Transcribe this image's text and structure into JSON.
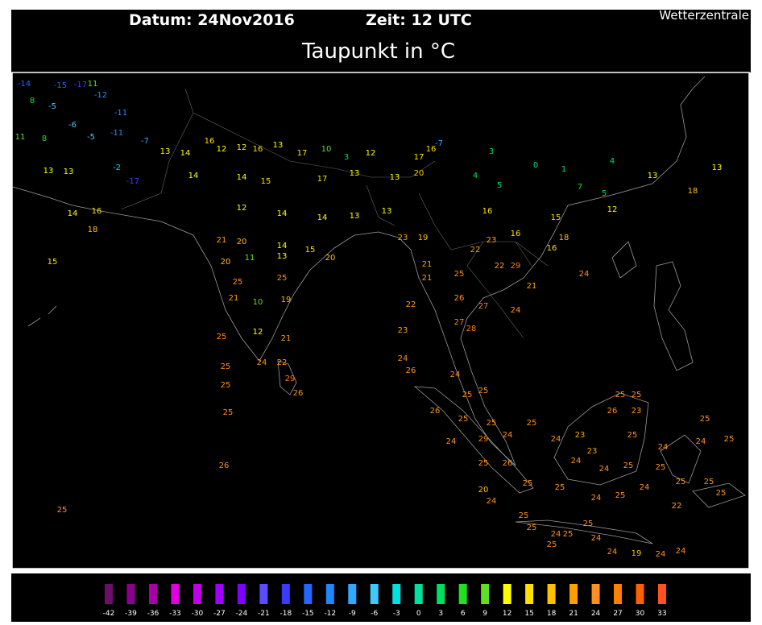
{
  "header": {
    "date": "Datum: 24Nov2016",
    "time": "Zeit: 12 UTC",
    "title": "Taupunkt in °C",
    "credit": "Wetterzentrale"
  },
  "legend": {
    "values": [
      -42,
      -39,
      -36,
      -33,
      -30,
      -27,
      -24,
      -21,
      -18,
      -15,
      -12,
      -9,
      -6,
      -3,
      0,
      3,
      6,
      9,
      12,
      15,
      18,
      21,
      24,
      27,
      30,
      33
    ],
    "colors": [
      "#6b0f6b",
      "#8b008b",
      "#a800a8",
      "#e000e0",
      "#c000e8",
      "#a000ff",
      "#8000ff",
      "#5a4cff",
      "#3a3aff",
      "#2466ff",
      "#2088ff",
      "#30a8ff",
      "#40c8ff",
      "#00e0e0",
      "#00e0a0",
      "#00e060",
      "#20e020",
      "#60e020",
      "#ffff00",
      "#ffe000",
      "#ffc000",
      "#ffa000",
      "#ff9020",
      "#ff8000",
      "#ff6000",
      "#ff5020"
    ]
  },
  "stations": [
    -14,
    -15,
    -17,
    11,
    -12,
    8,
    -5,
    -11,
    -6,
    -11,
    11,
    8,
    -5,
    -7,
    13,
    14,
    16,
    12,
    12,
    16,
    13,
    17,
    10,
    3,
    12,
    17,
    16,
    -7,
    3,
    0,
    1,
    4,
    13,
    13,
    -2,
    -17,
    14,
    14,
    15,
    17,
    13,
    13,
    20,
    4,
    5,
    7,
    5,
    13,
    13,
    18,
    14,
    16,
    12,
    14,
    14,
    13,
    13,
    16,
    15,
    12,
    18,
    21,
    20,
    14,
    15,
    23,
    19,
    23,
    16,
    18,
    15,
    20,
    11,
    13,
    20,
    21,
    22,
    22,
    16,
    24,
    25,
    25,
    21,
    25,
    29,
    21,
    21,
    10,
    19,
    22,
    26,
    27,
    24,
    25,
    12,
    21,
    23,
    27,
    28,
    22,
    29,
    26,
    24,
    25,
    25,
    24,
    26,
    24,
    25,
    25,
    25,
    26,
    25,
    25,
    25,
    24,
    29,
    24,
    24,
    23,
    25,
    25,
    26,
    23,
    23,
    25,
    24,
    25,
    24,
    25,
    26,
    25,
    26,
    24,
    24,
    25,
    25,
    20,
    25,
    25,
    24,
    25,
    24,
    25,
    25,
    25,
    25,
    24,
    25,
    25,
    22,
    25,
    24,
    25,
    24,
    25,
    24,
    19,
    24,
    24
  ]
}
